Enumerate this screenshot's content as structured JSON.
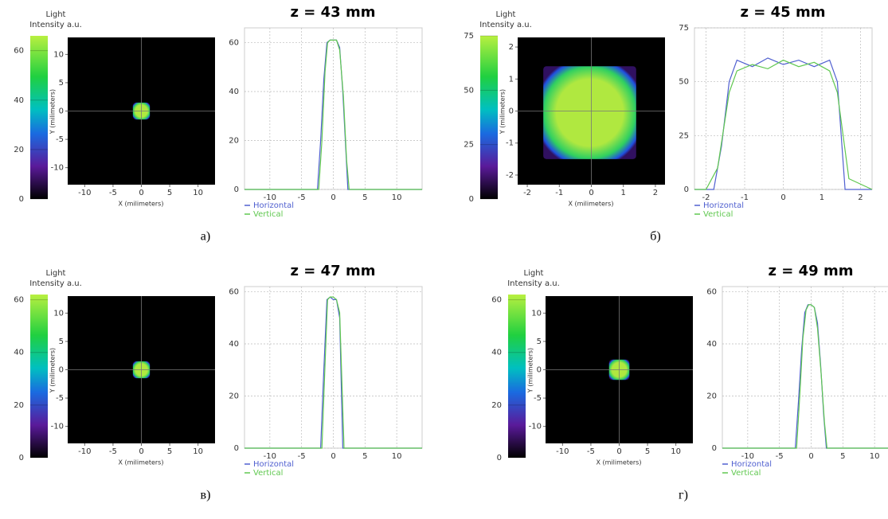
{
  "chart_data": [
    {
      "type": "beam-profile",
      "caption": "а)",
      "colorbar_title": [
        "Light",
        "Intensity a.u."
      ],
      "colorbar_lim": [
        0,
        66
      ],
      "colorbar_ticks": [
        0,
        20,
        40,
        60
      ],
      "heatmap": {
        "xlabel": "X (milimeters)",
        "ylabel": "Y (milimeters)",
        "xlim": [
          -13,
          13
        ],
        "ylim": [
          -13,
          13
        ],
        "xticks": [
          -10,
          -5,
          0,
          5,
          10
        ],
        "yticks": [
          -10,
          -5,
          0,
          5,
          10
        ],
        "beam_x": [
          -1.5,
          1.5
        ],
        "beam_y": [
          -1.5,
          1.5
        ]
      },
      "profile": {
        "title": "z = 43 mm",
        "xlim": [
          -14,
          14
        ],
        "ylim": [
          0,
          66
        ],
        "xticks": [
          -10,
          -5,
          0,
          5,
          10
        ],
        "yticks": [
          0,
          20,
          40,
          60
        ],
        "series": [
          {
            "name": "Horizontal",
            "color": "#5060d0",
            "x": [
              -14,
              -2.5,
              -2,
              -1.5,
              -1,
              -0.5,
              0,
              0.5,
              1,
              1.5,
              2,
              2.3,
              14
            ],
            "values": [
              0,
              0,
              20,
              45,
              60,
              61,
              61,
              61,
              58,
              40,
              15,
              0,
              0
            ]
          },
          {
            "name": "Vertical",
            "color": "#60c850",
            "x": [
              -14,
              -2.3,
              -1.8,
              -1.3,
              -0.9,
              -0.5,
              0,
              0.5,
              1,
              1.6,
              2.1,
              2.5,
              14
            ],
            "values": [
              0,
              0,
              20,
              48,
              60,
              61,
              61,
              61,
              57,
              38,
              12,
              0,
              0
            ]
          }
        ]
      }
    },
    {
      "type": "beam-profile",
      "caption": "б)",
      "colorbar_title": [
        "Light",
        "Intensity a.u."
      ],
      "colorbar_lim": [
        0,
        75
      ],
      "colorbar_ticks": [
        0,
        25,
        50,
        75
      ],
      "heatmap": {
        "xlabel": "X (milimeters)",
        "ylabel": "Y (milimeters)",
        "xlim": [
          -2.3,
          2.3
        ],
        "ylim": [
          -2.3,
          2.3
        ],
        "xticks": [
          -2,
          -1,
          0,
          1,
          2
        ],
        "yticks": [
          -2,
          -1,
          0,
          1,
          2
        ],
        "beam_x": [
          -1.5,
          1.4
        ],
        "beam_y": [
          -1.5,
          1.4
        ]
      },
      "profile": {
        "title": "z = 45 mm",
        "xlim": [
          -2.3,
          2.3
        ],
        "ylim": [
          0,
          75
        ],
        "xticks": [
          -2,
          -1,
          0,
          1,
          2
        ],
        "yticks": [
          0,
          25,
          50,
          75
        ],
        "series": [
          {
            "name": "Horizontal",
            "color": "#5060d0",
            "x": [
              -2.3,
              -1.8,
              -1.6,
              -1.4,
              -1.2,
              -0.8,
              -0.4,
              0,
              0.4,
              0.8,
              1.2,
              1.4,
              1.6,
              2.3
            ],
            "values": [
              0,
              0,
              20,
              50,
              60,
              57,
              61,
              58,
              60,
              57,
              60,
              50,
              0,
              0
            ]
          },
          {
            "name": "Vertical",
            "color": "#60c850",
            "x": [
              -2.3,
              -2,
              -1.7,
              -1.4,
              -1.2,
              -0.8,
              -0.4,
              0,
              0.4,
              0.8,
              1.2,
              1.4,
              1.7,
              2.3
            ],
            "values": [
              0,
              0,
              10,
              45,
              55,
              58,
              56,
              60,
              57,
              59,
              55,
              45,
              5,
              0
            ]
          }
        ]
      }
    },
    {
      "type": "beam-profile",
      "caption": "в)",
      "colorbar_title": [
        "Light",
        "Intensity a.u."
      ],
      "colorbar_lim": [
        0,
        62
      ],
      "colorbar_ticks": [
        0,
        20,
        40,
        60
      ],
      "heatmap": {
        "xlabel": "X (milimeters)",
        "ylabel": "Y (milimeters)",
        "xlim": [
          -13,
          13
        ],
        "ylim": [
          -13,
          13
        ],
        "xticks": [
          -10,
          -5,
          0,
          5,
          10
        ],
        "yticks": [
          -10,
          -5,
          0,
          5,
          10
        ],
        "beam_x": [
          -1.5,
          1.5
        ],
        "beam_y": [
          -1.5,
          1.5
        ]
      },
      "profile": {
        "title": "z = 47 mm",
        "xlim": [
          -14,
          14
        ],
        "ylim": [
          0,
          62
        ],
        "xticks": [
          -10,
          -5,
          0,
          5,
          10
        ],
        "yticks": [
          0,
          20,
          40,
          60
        ],
        "series": [
          {
            "name": "Horizontal",
            "color": "#5060d0",
            "x": [
              -14,
              -2,
              -1.5,
              -1,
              -0.5,
              0,
              0.5,
              1,
              1.5,
              14
            ],
            "values": [
              0,
              0,
              30,
              57,
              58,
              57,
              57,
              50,
              0,
              0
            ]
          },
          {
            "name": "Vertical",
            "color": "#60c850",
            "x": [
              -14,
              -1.8,
              -1.3,
              -0.9,
              -0.5,
              0,
              0.5,
              1,
              1.7,
              14
            ],
            "values": [
              0,
              0,
              32,
              57,
              58,
              58,
              57,
              52,
              0,
              0
            ]
          }
        ]
      }
    },
    {
      "type": "beam-profile",
      "caption": "г)",
      "colorbar_title": [
        "Light",
        "Intensity a.u."
      ],
      "colorbar_lim": [
        0,
        62
      ],
      "colorbar_ticks": [
        0,
        20,
        40,
        60
      ],
      "heatmap": {
        "xlabel": "X (milimeters)",
        "ylabel": "Y (milimeters)",
        "xlim": [
          -13,
          13
        ],
        "ylim": [
          -13,
          13
        ],
        "xticks": [
          -10,
          -5,
          0,
          5,
          10
        ],
        "yticks": [
          -10,
          -5,
          0,
          5,
          10
        ],
        "beam_x": [
          -1.8,
          1.8
        ],
        "beam_y": [
          -1.8,
          1.8
        ]
      },
      "profile": {
        "title": "z = 49 mm",
        "xlim": [
          -14,
          14
        ],
        "ylim": [
          0,
          62
        ],
        "xticks": [
          -10,
          -5,
          0,
          5,
          10
        ],
        "yticks": [
          0,
          20,
          40,
          60
        ],
        "series": [
          {
            "name": "Horizontal",
            "color": "#5060d0",
            "x": [
              -14,
              -2.5,
              -2,
              -1.5,
              -1,
              -0.5,
              0,
              0.5,
              1,
              1.5,
              2,
              2.4,
              14
            ],
            "values": [
              0,
              0,
              18,
              38,
              52,
              55,
              55,
              54,
              48,
              32,
              12,
              0,
              0
            ]
          },
          {
            "name": "Vertical",
            "color": "#60c850",
            "x": [
              -14,
              -2.3,
              -1.8,
              -1.3,
              -0.8,
              -0.4,
              0,
              0.5,
              1,
              1.6,
              2.1,
              2.5,
              14
            ],
            "values": [
              0,
              0,
              20,
              42,
              53,
              55,
              55,
              54,
              46,
              28,
              10,
              0,
              0
            ]
          }
        ]
      }
    }
  ]
}
